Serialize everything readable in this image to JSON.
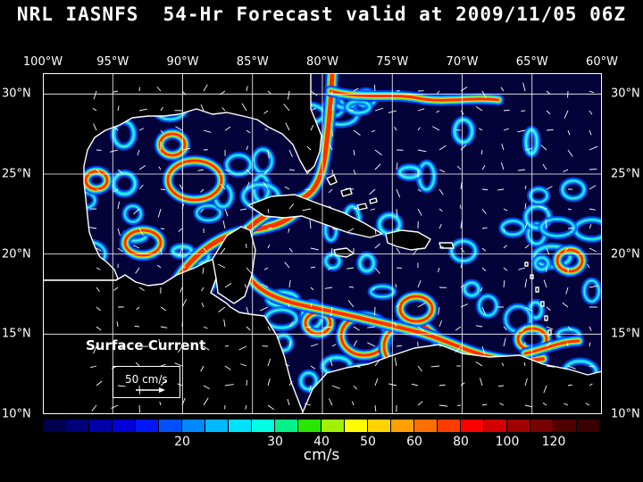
{
  "title": "NRL IASNFS  54-Hr Forecast valid at 2009/11/05 06Z",
  "map": {
    "lon_labels": [
      "100°W",
      "95°W",
      "90°W",
      "85°W",
      "80°W",
      "75°W",
      "70°W",
      "65°W",
      "60°W"
    ],
    "lat_labels": [
      "30°N",
      "25°N",
      "20°N",
      "15°N",
      "10°N"
    ],
    "lon_range": [
      -100,
      -60
    ],
    "lat_range": [
      10,
      31.3
    ],
    "gridlines": true,
    "variable": "Surface Current"
  },
  "reference_vector": {
    "label": "50 cm/s"
  },
  "colorbar": {
    "unit": "cm/s",
    "tick_labels": [
      "20",
      "30",
      "40",
      "50",
      "60",
      "80",
      "100",
      "120"
    ],
    "colors": [
      "#000050",
      "#00007a",
      "#0000a8",
      "#0000d8",
      "#0018f8",
      "#0050ff",
      "#0088ff",
      "#00b8ff",
      "#00e0ff",
      "#00ffe0",
      "#00f08a",
      "#28e600",
      "#a0f000",
      "#ffff00",
      "#ffd200",
      "#ffa000",
      "#ff7000",
      "#ff3c00",
      "#ff0000",
      "#d40000",
      "#a00000",
      "#780000",
      "#500000",
      "#3a0000"
    ]
  },
  "palette": {
    "background": "#000000",
    "ocean": "#03033a",
    "land": "#000000",
    "coastline": "#ffffff",
    "grid": "#ffffff"
  }
}
